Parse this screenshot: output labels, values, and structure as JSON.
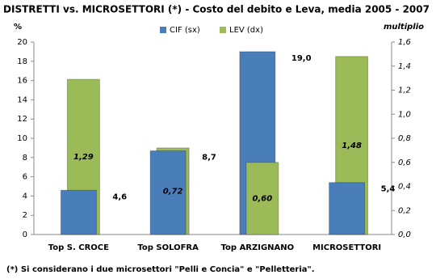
{
  "chart_data": {
    "type": "bar",
    "title": "DISTRETTI vs. MICROSETTORI (*) - Costo del debito e Leva, media 2005 - 2007",
    "y_label": "%",
    "y2_label": "multiplio",
    "footnote": "(*) Si considerano i due microsettori \"Pelli e Concia\" e \"Pelletteria\".",
    "categories": [
      "Top S. CROCE",
      "Top SOLOFRA",
      "Top ARZIGNANO",
      "MICROSETTORI"
    ],
    "series": [
      {
        "name": "CIF (sx)",
        "color": "#4a7ebb",
        "values": [
          4.6,
          8.7,
          19.0,
          5.4
        ],
        "value_labels": [
          "4,6",
          "8,7",
          "19,0",
          "5,4"
        ]
      },
      {
        "name": "LEV (dx)",
        "color": "#9bbb59",
        "axis": "y2",
        "values": [
          1.29,
          0.72,
          0.6,
          1.48
        ],
        "value_labels": [
          "1,29",
          "0,72",
          "0,60",
          "1,48"
        ]
      }
    ],
    "ylim": [
      0,
      20
    ],
    "yticks": [
      0,
      2,
      4,
      6,
      8,
      10,
      12,
      14,
      16,
      18,
      20
    ],
    "y2lim": [
      0,
      1.6
    ],
    "y2ticks": [
      {
        "value": 0,
        "label": "0,0"
      },
      {
        "value": 0.2,
        "label": "0,2"
      },
      {
        "value": 0.4,
        "label": "0,4"
      },
      {
        "value": 0.6,
        "label": "0,6"
      },
      {
        "value": 0.8,
        "label": "0,8"
      },
      {
        "value": 1.0,
        "label": "1,0"
      },
      {
        "value": 1.2,
        "label": "1,2"
      },
      {
        "value": 1.4,
        "label": "1,4"
      },
      {
        "value": 1.6,
        "label": "1,6"
      }
    ]
  }
}
